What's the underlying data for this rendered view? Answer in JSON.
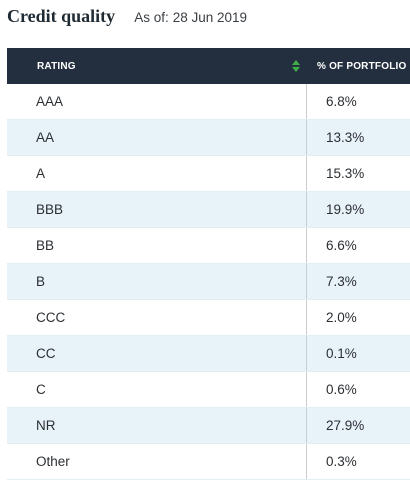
{
  "header": {
    "title": "Credit quality",
    "as_of_label": "As of:",
    "as_of_date": "28 Jun 2019"
  },
  "table": {
    "columns": {
      "rating": "RATING",
      "pct": "% OF PORTFOLIO"
    },
    "sort_icon": "sort-up-down-icon",
    "rows": [
      {
        "rating": "AAA",
        "pct": "6.8%"
      },
      {
        "rating": "AA",
        "pct": "13.3%"
      },
      {
        "rating": "A",
        "pct": "15.3%"
      },
      {
        "rating": "BBB",
        "pct": "19.9%"
      },
      {
        "rating": "BB",
        "pct": "6.6%"
      },
      {
        "rating": "B",
        "pct": "7.3%"
      },
      {
        "rating": "CCC",
        "pct": "2.0%"
      },
      {
        "rating": "CC",
        "pct": "0.1%"
      },
      {
        "rating": "C",
        "pct": "0.6%"
      },
      {
        "rating": "NR",
        "pct": "27.9%"
      },
      {
        "rating": "Other",
        "pct": "0.3%"
      }
    ]
  },
  "colors": {
    "header_bg": "#232f3e",
    "alt_row_bg": "#e8f3f9",
    "sort_icon": "#3fae49"
  }
}
